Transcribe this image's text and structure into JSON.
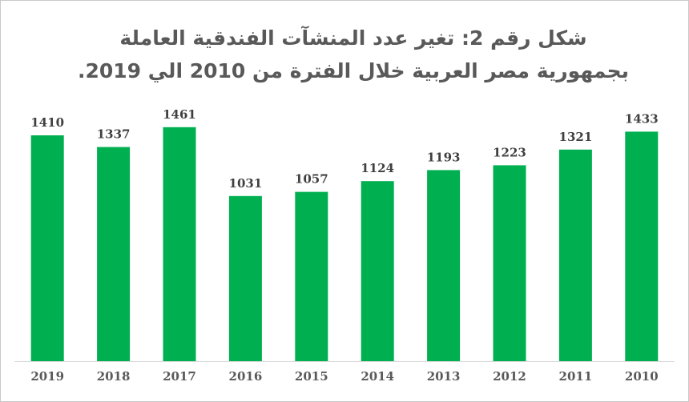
{
  "chart_data": {
    "type": "bar",
    "title": "شكل رقم 2: تغير عدد المنشآت الفندقية العاملة بجمهورية مصر العربية خلال الفترة من 2010 الي 2019.",
    "categories": [
      "2019",
      "2018",
      "2017",
      "2016",
      "2015",
      "2014",
      "2013",
      "2012",
      "2011",
      "2010"
    ],
    "values": [
      1410,
      1337,
      1461,
      1031,
      1057,
      1124,
      1193,
      1223,
      1321,
      1433
    ],
    "xlabel": "",
    "ylabel": "",
    "ylim": [
      0,
      1600
    ],
    "grid": false,
    "legend": "none",
    "bar_color": "#00b050",
    "axis_color": "#d9d9d9"
  }
}
